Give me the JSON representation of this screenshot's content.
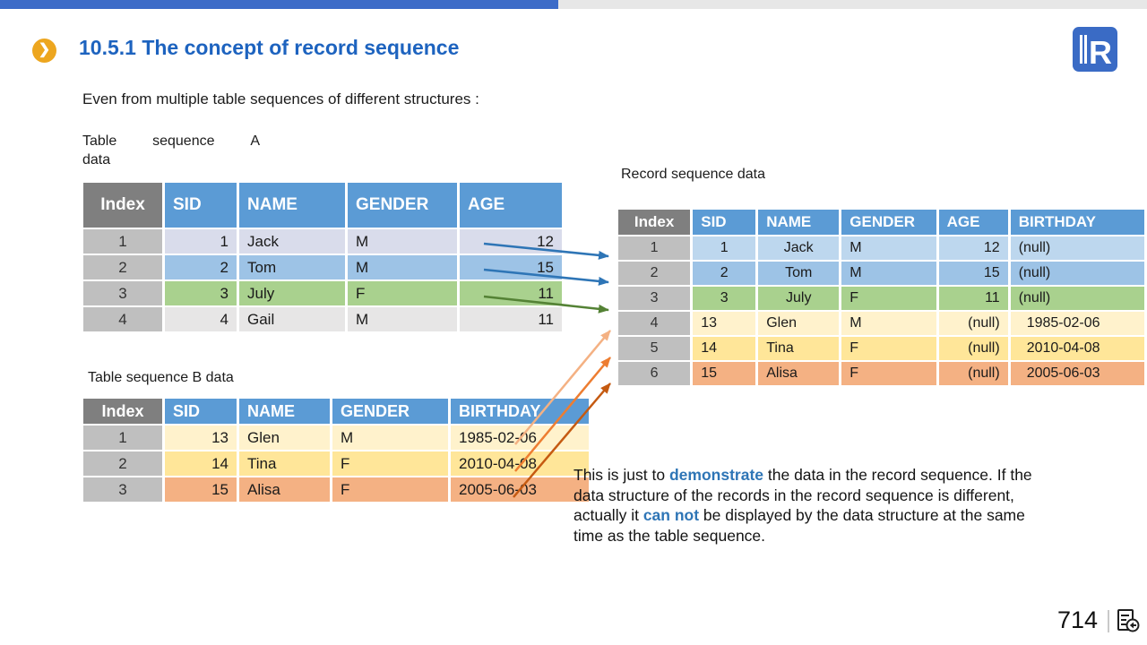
{
  "colors": {
    "topbar_blue": "#3d6cc8",
    "topbar_gray": "#e7e7e7",
    "title_blue": "#1d63bf",
    "bullet_orange": "#eda61f",
    "header_blue": "#5b9bd5",
    "header_index_gray": "#7f7f7f",
    "index_cell_gray": "#bfbfbf",
    "highlight_blue": "#2e75b6",
    "logo_blue": "#3a6bc5",
    "arrow_blue": "#2e75b6",
    "arrow_green": "#548235",
    "arrow_orange_light": "#f4b183",
    "arrow_orange": "#ed7d31",
    "arrow_orange_dark": "#c55a11"
  },
  "icons": {
    "bullet_chevron": "❯",
    "logo_letter": "R"
  },
  "header": {
    "title": "10.5.1 The concept of record sequence"
  },
  "intro_text": "Even from multiple table sequences of different structures :",
  "labels": {
    "table_a_line1_words": [
      "Table",
      "sequence",
      "A"
    ],
    "table_a_line2": "data",
    "table_b": "Table sequence B data",
    "record": "Record sequence data"
  },
  "tables": {
    "table_a": {
      "headers": [
        "Index",
        "SID",
        "NAME",
        "GENDER",
        "AGE"
      ],
      "aligns": [
        "c",
        "r",
        "l",
        "l",
        "r"
      ],
      "rows": [
        {
          "index": "1",
          "cells": [
            "1",
            "Jack",
            "M",
            "12"
          ],
          "color": "#d9dceb"
        },
        {
          "index": "2",
          "cells": [
            "2",
            "Tom",
            "M",
            "15"
          ],
          "color": "#9dc3e6"
        },
        {
          "index": "3",
          "cells": [
            "3",
            "July",
            "F",
            "11"
          ],
          "color": "#a9d18e"
        },
        {
          "index": "4",
          "cells": [
            "4",
            "Gail",
            "M",
            "11"
          ],
          "color": "#e7e6e6"
        }
      ]
    },
    "table_b": {
      "headers": [
        "Index",
        "SID",
        "NAME",
        "GENDER",
        "BIRTHDAY"
      ],
      "aligns": [
        "c",
        "r",
        "l",
        "l",
        "l"
      ],
      "rows": [
        {
          "index": "1",
          "cells": [
            "13",
            "Glen",
            "M",
            "1985-02-06"
          ],
          "color": "#fff2cc"
        },
        {
          "index": "2",
          "cells": [
            "14",
            "Tina",
            "F",
            "2010-04-08"
          ],
          "color": "#ffe699"
        },
        {
          "index": "3",
          "cells": [
            "15",
            "Alisa",
            "F",
            "2005-06-03"
          ],
          "color": "#f4b183"
        }
      ]
    },
    "record_table": {
      "headers": [
        "Index",
        "SID",
        "NAME",
        "GENDER",
        "AGE",
        "BIRTHDAY"
      ],
      "aligns": [
        "c",
        "c",
        "c",
        "l",
        "r",
        "l"
      ],
      "rows": [
        {
          "index": "1",
          "cells": [
            "1",
            "Jack",
            "M",
            "12",
            "(null)"
          ],
          "color": "#bdd7ee"
        },
        {
          "index": "2",
          "cells": [
            "2",
            "Tom",
            "M",
            "15",
            "(null)"
          ],
          "color": "#9dc3e6"
        },
        {
          "index": "3",
          "cells": [
            "3",
            "July",
            "F",
            "11",
            "(null)"
          ],
          "color": "#a9d18e"
        },
        {
          "index": "4",
          "cells": [
            "13",
            "Glen",
            "M",
            "(null)",
            "1985-02-06"
          ],
          "color": "#fff2cc",
          "aligns": [
            "c",
            "l",
            "l",
            "l",
            "r",
            "i"
          ]
        },
        {
          "index": "5",
          "cells": [
            "14",
            "Tina",
            "F",
            "(null)",
            "2010-04-08"
          ],
          "color": "#ffe699",
          "aligns": [
            "c",
            "l",
            "l",
            "l",
            "r",
            "i"
          ]
        },
        {
          "index": "6",
          "cells": [
            "15",
            "Alisa",
            "F",
            "(null)",
            "2005-06-03"
          ],
          "color": "#f4b183",
          "aligns": [
            "c",
            "l",
            "l",
            "l",
            "r",
            "i"
          ]
        }
      ]
    }
  },
  "arrows": [
    {
      "from": "table-a-row-1",
      "to": "record-row-1",
      "color": "#2e75b6"
    },
    {
      "from": "table-a-row-2",
      "to": "record-row-2",
      "color": "#2e75b6"
    },
    {
      "from": "table-a-row-3",
      "to": "record-row-3",
      "color": "#548235"
    },
    {
      "from": "table-b-row-1",
      "to": "record-row-4",
      "color": "#f4b183"
    },
    {
      "from": "table-b-row-2",
      "to": "record-row-5",
      "color": "#ed7d31"
    },
    {
      "from": "table-b-row-3",
      "to": "record-row-6",
      "color": "#c55a11"
    }
  ],
  "note": {
    "lines": [
      [
        {
          "t": "This is just to "
        },
        {
          "t": "demonstrate",
          "hl": true
        },
        {
          "t": " the data in the record sequence. If the"
        }
      ],
      [
        {
          "t": "data structure of the records in the record sequence is different,"
        }
      ],
      [
        {
          "t": "actually it "
        },
        {
          "t": "can not",
          "hl": true
        },
        {
          "t": " be displayed by the data structure at the same"
        }
      ],
      [
        {
          "t": "time as the table sequence."
        }
      ]
    ]
  },
  "footer": {
    "page_number": "714"
  }
}
